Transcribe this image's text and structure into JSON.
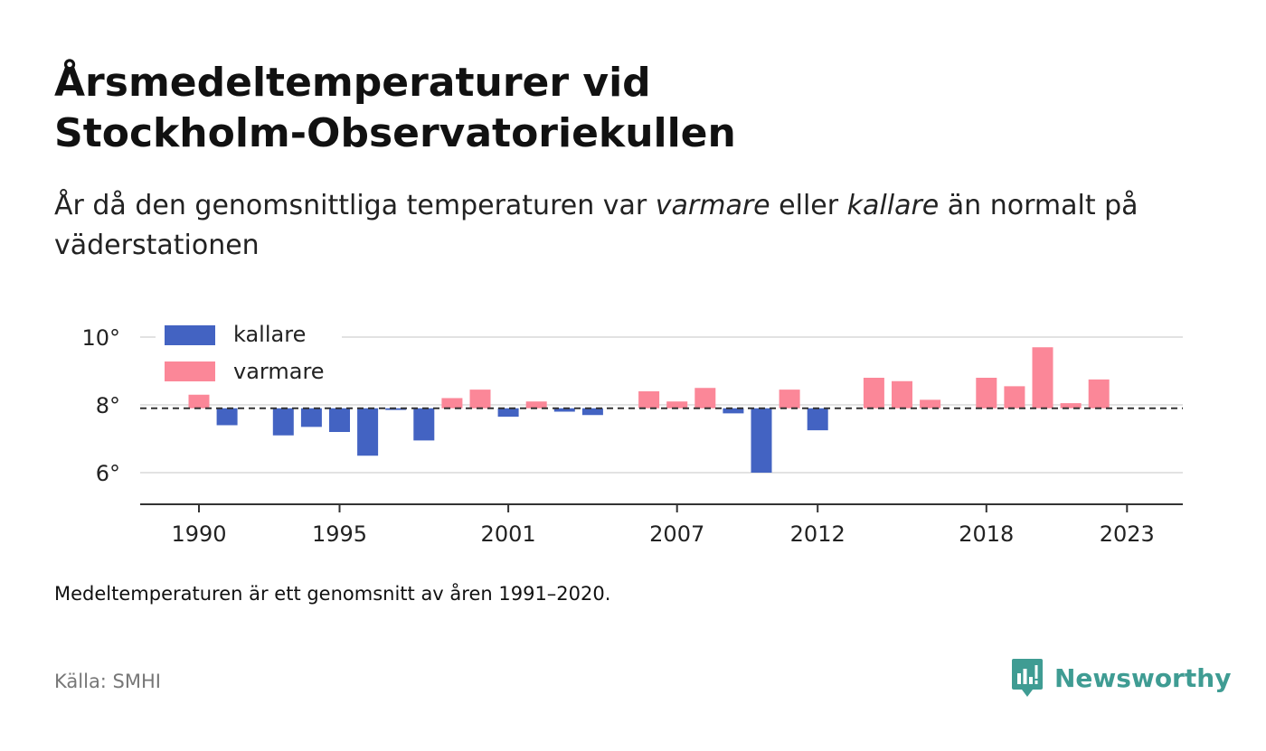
{
  "header": {
    "title_line1": "Årsmedeltemperaturer vid",
    "title_line2": "Stockholm-Observatoriekullen",
    "subtitle_part1": "År då den genomsnittliga temperaturen var ",
    "subtitle_em1": "varmare",
    "subtitle_part2": " eller ",
    "subtitle_em2": "kallare",
    "subtitle_part3": " än normalt på väderstationen"
  },
  "footer": {
    "note": "Medeltemperaturen är ett genomsnitt av åren 1991–2020.",
    "source": "Källa: SMHI",
    "brand": "Newsworthy"
  },
  "colors": {
    "kallare": "#4363c2",
    "varmare": "#fb8798",
    "reference": "#333333"
  },
  "chart_data": {
    "type": "bar",
    "title": "",
    "xlabel": "",
    "ylabel": "",
    "baseline": 7.9,
    "ylim": [
      5,
      10
    ],
    "yticks": [
      6,
      8,
      10
    ],
    "ytick_labels": [
      "6°",
      "8°",
      "10°"
    ],
    "xticks": [
      1990,
      1995,
      2001,
      2007,
      2012,
      2018,
      2023
    ],
    "xtick_labels": [
      "1990",
      "1995",
      "2001",
      "2007",
      "2012",
      "2018",
      "2023"
    ],
    "legend": {
      "position": "top-left",
      "items": [
        {
          "key": "kallare",
          "label": "kallare"
        },
        {
          "key": "varmare",
          "label": "varmare"
        }
      ]
    },
    "grid": "horizontal",
    "years": [
      1990,
      1991,
      1992,
      1993,
      1994,
      1995,
      1996,
      1997,
      1998,
      1999,
      2000,
      2001,
      2002,
      2003,
      2004,
      2005,
      2006,
      2007,
      2008,
      2009,
      2010,
      2011,
      2012,
      2013,
      2014,
      2015,
      2016,
      2017,
      2018,
      2019,
      2020,
      2021,
      2022,
      2023
    ],
    "values": [
      8.3,
      7.4,
      7.9,
      7.1,
      7.35,
      7.2,
      6.5,
      7.85,
      6.95,
      8.2,
      8.45,
      7.65,
      8.1,
      7.8,
      7.7,
      7.9,
      8.4,
      8.1,
      8.5,
      7.75,
      6.0,
      8.45,
      7.25,
      7.9,
      8.8,
      8.7,
      8.15,
      7.9,
      8.8,
      8.55,
      9.7,
      8.05,
      8.75,
      7.9
    ]
  }
}
